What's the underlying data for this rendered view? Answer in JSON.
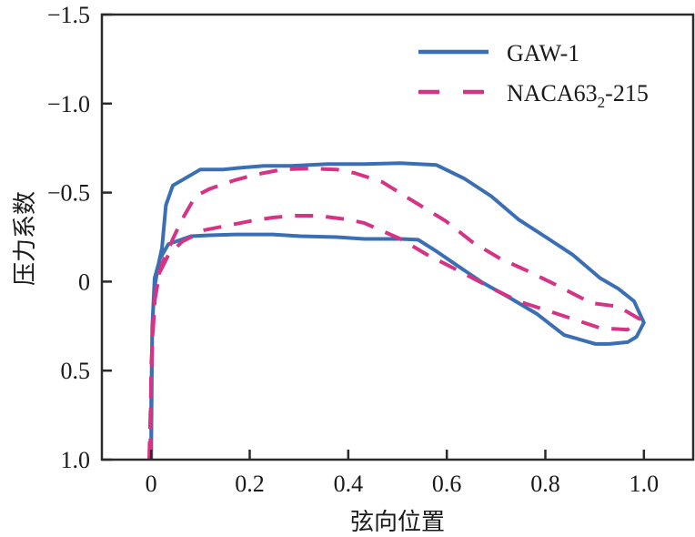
{
  "chart_data": {
    "type": "line",
    "title": "",
    "xlabel": "弦向位置",
    "ylabel": "压力系数",
    "xlim": [
      -0.1,
      1.1
    ],
    "ylim": [
      1.0,
      -1.5
    ],
    "y_inverted": true,
    "xticks": [
      0,
      0.2,
      0.4,
      0.6,
      0.8,
      1.0
    ],
    "xtick_labels": [
      "0",
      "0.2",
      "0.4",
      "0.6",
      "0.8",
      "1.0"
    ],
    "yticks": [
      -1.5,
      -1.0,
      -0.5,
      0,
      0.5,
      1.0
    ],
    "ytick_labels": [
      "−1.5",
      "−1.0",
      "−0.5",
      "0",
      "0.5",
      "1.0"
    ],
    "grid": false,
    "legend_position": "top-right",
    "series": [
      {
        "name": "GAW-1",
        "label_main": "GAW-1",
        "label_sub": "",
        "label_tail": "",
        "color": "#3a6fb5",
        "style": "solid",
        "x": [
          0.0,
          0.0,
          0.002,
          0.004,
          0.007,
          0.015,
          0.022,
          0.03,
          0.044,
          0.1,
          0.146,
          0.183,
          0.229,
          0.284,
          0.358,
          0.432,
          0.506,
          0.579,
          0.635,
          0.69,
          0.745,
          0.801,
          0.856,
          0.911,
          0.948,
          0.98,
          1.0,
          0.985,
          0.967,
          0.93,
          0.902,
          0.838,
          0.782,
          0.727,
          0.672,
          0.616,
          0.579,
          0.542,
          0.506,
          0.432,
          0.376,
          0.303,
          0.247,
          0.173,
          0.118,
          0.081,
          0.035,
          0.018,
          0.007,
          0.002,
          0.0
        ],
        "y": [
          1.0,
          0.67,
          0.31,
          0.16,
          0.03,
          -0.1,
          -0.19,
          -0.43,
          -0.54,
          -0.63,
          -0.63,
          -0.64,
          -0.65,
          -0.65,
          -0.66,
          -0.66,
          -0.665,
          -0.655,
          -0.58,
          -0.48,
          -0.35,
          -0.25,
          -0.15,
          -0.02,
          0.04,
          0.11,
          0.23,
          0.31,
          0.34,
          0.35,
          0.35,
          0.3,
          0.18,
          0.09,
          0.005,
          -0.1,
          -0.17,
          -0.235,
          -0.24,
          -0.24,
          -0.25,
          -0.255,
          -0.265,
          -0.265,
          -0.26,
          -0.255,
          -0.21,
          -0.13,
          -0.02,
          0.26,
          1.0
        ]
      },
      {
        "name": "NACA63_2-215",
        "label_main": "NACA63",
        "label_sub": "2",
        "label_tail": "-215",
        "color": "#d63384",
        "style": "dashed",
        "x": [
          -0.004,
          0.0,
          0.004,
          0.011,
          0.022,
          0.044,
          0.063,
          0.09,
          0.118,
          0.17,
          0.21,
          0.266,
          0.321,
          0.376,
          0.413,
          0.469,
          0.524,
          0.598,
          0.653,
          0.708,
          0.764,
          0.819,
          0.893,
          0.948,
          0.991,
          0.967,
          0.911,
          0.856,
          0.801,
          0.745,
          0.69,
          0.625,
          0.561,
          0.506,
          0.432,
          0.395,
          0.339,
          0.293,
          0.247,
          0.201,
          0.146,
          0.109,
          0.063,
          0.035,
          0.017,
          0.007,
          0.0,
          -0.002
        ],
        "y": [
          1.0,
          0.57,
          0.21,
          0.005,
          -0.1,
          -0.24,
          -0.35,
          -0.48,
          -0.52,
          -0.57,
          -0.6,
          -0.63,
          -0.635,
          -0.63,
          -0.61,
          -0.56,
          -0.465,
          -0.34,
          -0.22,
          -0.13,
          -0.06,
          0.015,
          0.12,
          0.14,
          0.21,
          0.27,
          0.26,
          0.21,
          0.16,
          0.11,
          0.035,
          -0.06,
          -0.15,
          -0.24,
          -0.33,
          -0.35,
          -0.37,
          -0.37,
          -0.36,
          -0.34,
          -0.31,
          -0.29,
          -0.225,
          -0.15,
          -0.05,
          0.11,
          0.47,
          1.0
        ]
      }
    ]
  }
}
